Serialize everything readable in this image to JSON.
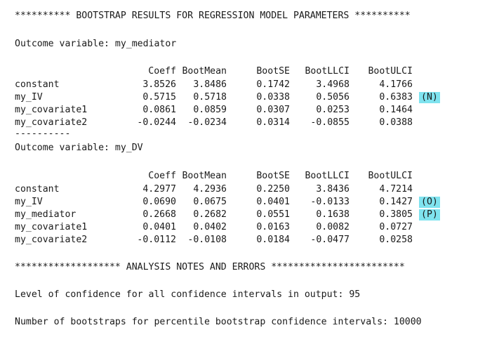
{
  "header_line": "********** BOOTSTRAP RESULTS FOR REGRESSION MODEL PARAMETERS **********",
  "col_headers": [
    "Coeff",
    "BootMean",
    "BootSE",
    "BootLLCI",
    "BootULCI"
  ],
  "model1": {
    "outcome": "Outcome variable: my_mediator",
    "rows": [
      {
        "name": "constant",
        "vals": [
          "3.8526",
          "3.8486",
          "0.1742",
          "3.4968",
          "4.1766"
        ],
        "tag": ""
      },
      {
        "name": "my_IV",
        "vals": [
          "0.5715",
          "0.5718",
          "0.0338",
          "0.5056",
          "0.6383"
        ],
        "tag": "(N)"
      },
      {
        "name": "my_covariate1",
        "vals": [
          "0.0861",
          "0.0859",
          "0.0307",
          "0.0253",
          "0.1464"
        ],
        "tag": ""
      },
      {
        "name": "my_covariate2",
        "vals": [
          "-0.0244",
          "-0.0234",
          "0.0314",
          "-0.0855",
          "0.0388"
        ],
        "tag": ""
      }
    ]
  },
  "separator": "----------",
  "model2": {
    "outcome": "Outcome variable: my_DV",
    "rows": [
      {
        "name": "constant",
        "vals": [
          "4.2977",
          "4.2936",
          "0.2250",
          "3.8436",
          "4.7214"
        ],
        "tag": ""
      },
      {
        "name": "my_IV",
        "vals": [
          "0.0690",
          "0.0675",
          "0.0401",
          "-0.0133",
          "0.1427"
        ],
        "tag": "(O)"
      },
      {
        "name": "my_mediator",
        "vals": [
          "0.2668",
          "0.2682",
          "0.0551",
          "0.1638",
          "0.3805"
        ],
        "tag": "(P)"
      },
      {
        "name": "my_covariate1",
        "vals": [
          "0.0401",
          "0.0402",
          "0.0163",
          "0.0082",
          "0.0727"
        ],
        "tag": ""
      },
      {
        "name": "my_covariate2",
        "vals": [
          "-0.0112",
          "-0.0108",
          "0.0184",
          "-0.0477",
          "0.0258"
        ],
        "tag": ""
      }
    ]
  },
  "notes_header": "******************* ANALYSIS NOTES AND ERRORS ************************",
  "note1": "Level of confidence for all confidence intervals in output: 95",
  "note2": "Number of bootstraps for percentile bootstrap confidence intervals: 10000",
  "highlight_color": "#7fe3ef"
}
